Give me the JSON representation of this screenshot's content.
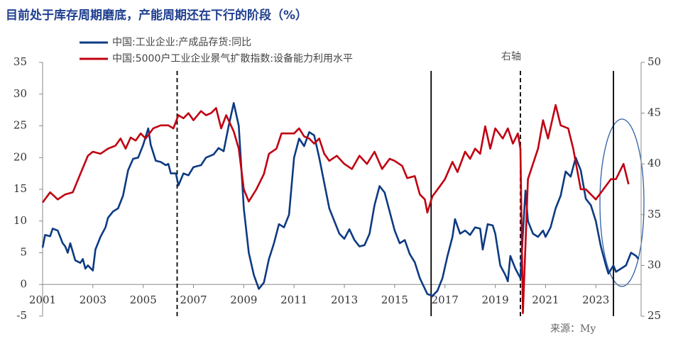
{
  "chart_data": {
    "type": "line",
    "title": "目前处于库存周期磨底，产能周期还在下行的阶段（%）",
    "annotation": "右轴",
    "source": "来源：My",
    "xlim": [
      2001,
      2024.8
    ],
    "xticks": [
      2001,
      2003,
      2005,
      2007,
      2009,
      2011,
      2013,
      2015,
      2017,
      2019,
      2021,
      2023
    ],
    "ylim": [
      -5,
      35
    ],
    "yticks": [
      -5,
      0,
      5,
      10,
      15,
      20,
      25,
      30,
      35
    ],
    "y2lim": [
      25,
      50
    ],
    "y2ticks": [
      25,
      30,
      35,
      40,
      45,
      50
    ],
    "vlines": [
      {
        "x": 2006.35,
        "style": "dashed"
      },
      {
        "x": 2016.45,
        "style": "solid"
      },
      {
        "x": 2020.0,
        "style": "dashed"
      },
      {
        "x": 2023.7,
        "style": "solid"
      }
    ],
    "series": [
      {
        "name": "中国:工业企业:产成品存货:同比",
        "color": "#0d3a82",
        "axis": "y",
        "x": [
          2001.0,
          2001.1,
          2001.3,
          2001.4,
          2001.6,
          2001.8,
          2001.9,
          2002.0,
          2002.1,
          2002.3,
          2002.5,
          2002.6,
          2002.7,
          2002.8,
          2003.0,
          2003.1,
          2003.3,
          2003.5,
          2003.6,
          2003.8,
          2004.0,
          2004.2,
          2004.4,
          2004.6,
          2004.8,
          2005.0,
          2005.2,
          2005.3,
          2005.5,
          2005.7,
          2005.9,
          2006.0,
          2006.1,
          2006.3,
          2006.4,
          2006.6,
          2006.8,
          2007.0,
          2007.3,
          2007.5,
          2007.8,
          2008.0,
          2008.2,
          2008.4,
          2008.6,
          2008.8,
          2009.0,
          2009.2,
          2009.4,
          2009.6,
          2009.8,
          2010.0,
          2010.2,
          2010.4,
          2010.6,
          2010.8,
          2011.0,
          2011.2,
          2011.4,
          2011.6,
          2011.8,
          2012.0,
          2012.2,
          2012.4,
          2012.6,
          2012.8,
          2013.0,
          2013.2,
          2013.4,
          2013.6,
          2013.8,
          2014.0,
          2014.2,
          2014.4,
          2014.6,
          2014.8,
          2015.0,
          2015.2,
          2015.4,
          2015.6,
          2015.8,
          2016.0,
          2016.3,
          2016.5,
          2016.7,
          2016.9,
          2017.1,
          2017.3,
          2017.4,
          2017.6,
          2017.8,
          2018.0,
          2018.2,
          2018.4,
          2018.5,
          2018.7,
          2018.9,
          2019.0,
          2019.2,
          2019.4,
          2019.5,
          2019.6,
          2019.8,
          2020.0,
          2020.1,
          2020.2,
          2020.3,
          2020.5,
          2020.7,
          2020.9,
          2021.0,
          2021.2,
          2021.4,
          2021.6,
          2021.8,
          2022.0,
          2022.2,
          2022.4,
          2022.6,
          2022.8,
          2023.0,
          2023.2,
          2023.4,
          2023.5,
          2023.7,
          2023.8,
          2024.0,
          2024.2,
          2024.4,
          2024.6,
          2024.7
        ],
        "values": [
          5.8,
          7.8,
          7.6,
          8.8,
          8.5,
          6.5,
          6.0,
          5.0,
          6.5,
          3.8,
          3.4,
          4.0,
          2.5,
          3.0,
          2.2,
          5.5,
          7.5,
          9.0,
          10.5,
          11.5,
          12.0,
          14.0,
          18.0,
          19.8,
          20.0,
          22.0,
          24.6,
          22.0,
          19.5,
          19.3,
          18.8,
          19.0,
          17.5,
          17.5,
          15.6,
          17.5,
          17.2,
          18.5,
          18.8,
          20.0,
          20.5,
          21.5,
          21.0,
          25.0,
          28.6,
          25.0,
          12.0,
          5.0,
          1.5,
          -0.7,
          0.3,
          4.0,
          6.5,
          9.5,
          9.0,
          11.0,
          20.0,
          23.0,
          21.8,
          24.0,
          23.5,
          20.0,
          16.0,
          12.0,
          10.0,
          8.0,
          7.2,
          8.7,
          7.0,
          6.0,
          6.2,
          8.0,
          12.5,
          15.5,
          14.5,
          11.5,
          8.5,
          6.5,
          7.0,
          4.8,
          3.5,
          1.0,
          -1.5,
          -1.8,
          -1.0,
          1.0,
          4.5,
          7.5,
          10.3,
          8.0,
          8.5,
          7.8,
          9.0,
          8.8,
          5.5,
          9.5,
          9.3,
          8.0,
          3.0,
          1.5,
          0.5,
          4.5,
          2.5,
          1.0,
          8.0,
          14.8,
          10.0,
          8.0,
          7.5,
          8.5,
          7.5,
          9.0,
          12.0,
          14.0,
          17.8,
          17.0,
          20.0,
          18.0,
          13.5,
          12.5,
          10.0,
          6.0,
          3.0,
          1.7,
          3.0,
          2.0,
          2.5,
          3.0,
          5.0,
          4.5,
          4.0
        ]
      },
      {
        "name": "中国:5000户工业企业景气扩散指数:设备能力利用水平",
        "color": "#c00010",
        "axis": "y2",
        "x": [
          2001.0,
          2001.3,
          2001.6,
          2001.9,
          2002.2,
          2002.5,
          2002.8,
          2003.0,
          2003.3,
          2003.6,
          2003.9,
          2004.1,
          2004.3,
          2004.5,
          2004.7,
          2004.9,
          2005.1,
          2005.4,
          2005.7,
          2006.0,
          2006.2,
          2006.4,
          2006.6,
          2006.8,
          2007.0,
          2007.3,
          2007.5,
          2007.7,
          2007.9,
          2008.1,
          2008.3,
          2008.6,
          2008.8,
          2009.0,
          2009.2,
          2009.5,
          2009.8,
          2010.0,
          2010.3,
          2010.5,
          2010.8,
          2011.0,
          2011.2,
          2011.4,
          2011.6,
          2011.8,
          2012.0,
          2012.2,
          2012.4,
          2012.7,
          2013.0,
          2013.3,
          2013.6,
          2013.9,
          2014.2,
          2014.5,
          2014.8,
          2015.0,
          2015.3,
          2015.5,
          2015.8,
          2016.0,
          2016.2,
          2016.3,
          2016.5,
          2016.8,
          2017.0,
          2017.3,
          2017.5,
          2017.8,
          2018.0,
          2018.2,
          2018.4,
          2018.6,
          2018.8,
          2019.0,
          2019.3,
          2019.5,
          2019.7,
          2019.9,
          2020.0,
          2020.1,
          2020.3,
          2020.5,
          2020.7,
          2020.9,
          2021.1,
          2021.4,
          2021.6,
          2021.9,
          2022.1,
          2022.4,
          2022.6,
          2022.8,
          2023.0,
          2023.3,
          2023.6,
          2023.8,
          2024.1,
          2024.3
        ],
        "values": [
          36.2,
          37.2,
          36.5,
          37.0,
          37.2,
          39.0,
          40.8,
          41.2,
          41.0,
          41.5,
          41.8,
          42.5,
          41.5,
          42.6,
          42.3,
          43.0,
          42.5,
          43.5,
          43.8,
          43.8,
          43.5,
          44.8,
          44.5,
          45.0,
          44.3,
          45.2,
          44.8,
          45.0,
          45.5,
          43.5,
          44.8,
          43.2,
          41.5,
          37.5,
          36.3,
          37.5,
          39.0,
          41.0,
          41.5,
          43.0,
          43.0,
          43.0,
          43.5,
          42.7,
          42.5,
          42.0,
          42.5,
          41.0,
          40.3,
          40.8,
          40.0,
          39.5,
          40.8,
          40.0,
          41.2,
          39.5,
          40.5,
          40.3,
          39.8,
          38.6,
          38.8,
          37.0,
          36.5,
          35.2,
          36.8,
          37.8,
          38.5,
          40.2,
          39.2,
          41.2,
          40.5,
          41.5,
          41.0,
          43.7,
          41.5,
          43.5,
          42.5,
          43.5,
          42.0,
          43.0,
          41.5,
          25.3,
          38.5,
          40.0,
          41.5,
          44.3,
          42.5,
          45.8,
          43.8,
          43.5,
          41.5,
          37.5,
          37.5,
          37.0,
          36.5,
          37.5,
          38.5,
          38.5,
          40.0,
          38.0
        ]
      }
    ]
  }
}
